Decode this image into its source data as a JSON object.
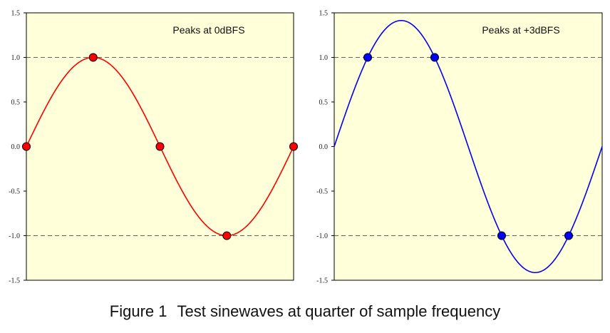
{
  "caption": {
    "number": "Figure 1",
    "text": "Test sinewaves at quarter of sample frequency"
  },
  "colors": {
    "background": "#ffffd9",
    "left_series": "#ff0000",
    "right_series": "#0000ff",
    "reference_line": "#333333"
  },
  "chart_data": [
    {
      "type": "line",
      "title": "",
      "annotation": "Peaks at 0dBFS",
      "xlabel": "",
      "ylabel": "",
      "ylim": [
        -1.5,
        1.5
      ],
      "xlim": [
        0,
        4
      ],
      "yticks": [
        "1.5",
        "1.0",
        "0.5",
        "0.0",
        "-0.5",
        "-1.0",
        "-1.5"
      ],
      "reference_lines": [
        1.0,
        -1.0
      ],
      "grid": false,
      "curve": {
        "amplitude": 1.0,
        "phase_deg": 0,
        "period": 4
      },
      "sample_points": {
        "x": [
          0,
          1,
          2,
          3,
          4
        ],
        "y": [
          0.0,
          1.0,
          0.0,
          -1.0,
          0.0
        ]
      }
    },
    {
      "type": "line",
      "title": "",
      "annotation": "Peaks at +3dBFS",
      "xlabel": "",
      "ylabel": "",
      "ylim": [
        -1.5,
        1.5
      ],
      "xlim": [
        0,
        4
      ],
      "yticks": [
        "1.5",
        "1.0",
        "0.5",
        "0.0",
        "-0.5",
        "-1.0",
        "-1.5"
      ],
      "reference_lines": [
        1.0,
        -1.0
      ],
      "grid": false,
      "curve": {
        "amplitude": 1.414,
        "phase_deg": 0,
        "period": 4
      },
      "sample_points": {
        "x": [
          0.5,
          1.5,
          2.5,
          3.5
        ],
        "y": [
          1.0,
          1.0,
          -1.0,
          -1.0
        ]
      }
    }
  ]
}
